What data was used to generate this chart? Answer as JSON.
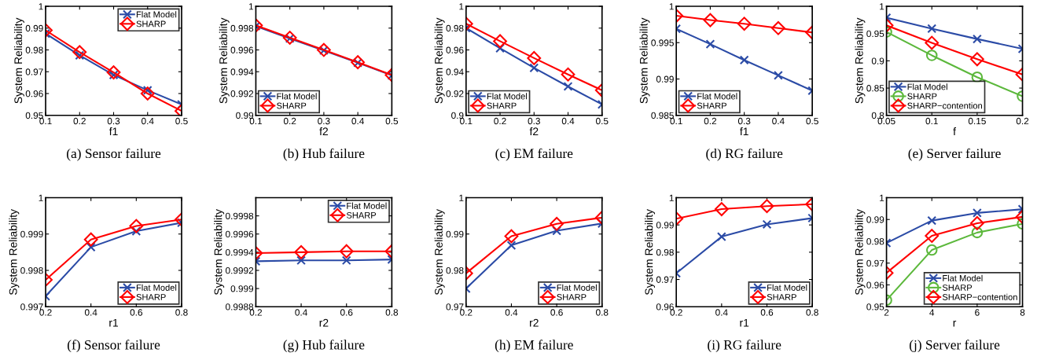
{
  "chart_data": [
    {
      "type": "line",
      "title": "(a) Sensor failure",
      "xlabel": "f1",
      "ylabel": "System Reliability",
      "x": [
        0.1,
        0.2,
        0.3,
        0.4,
        0.5
      ],
      "xlim": [
        0.1,
        0.5
      ],
      "xticks": [
        0.1,
        0.2,
        0.3,
        0.4,
        0.5
      ],
      "ylim": [
        0.95,
        1
      ],
      "yticks": [
        0.95,
        0.96,
        0.97,
        0.98,
        0.99,
        1
      ],
      "legend": "top right",
      "series": [
        {
          "name": "Flat Model",
          "color": "#2b4ba6",
          "marker": "cross",
          "values": [
            0.9875,
            0.9775,
            0.9685,
            0.9615,
            0.955
          ]
        },
        {
          "name": "SHARP",
          "color": "#ff0000",
          "marker": "diamond",
          "values": [
            0.989,
            0.979,
            0.9697,
            0.96,
            0.952
          ]
        }
      ]
    },
    {
      "type": "line",
      "title": "(b) Hub failure",
      "xlabel": "f2",
      "ylabel": "System Reliability",
      "x": [
        0.1,
        0.2,
        0.3,
        0.4,
        0.5
      ],
      "xlim": [
        0.1,
        0.5
      ],
      "xticks": [
        0.1,
        0.2,
        0.3,
        0.4,
        0.5
      ],
      "ylim": [
        0.99,
        1
      ],
      "yticks": [
        0.99,
        0.992,
        0.994,
        0.996,
        0.998,
        1
      ],
      "legend": "bottom left",
      "series": [
        {
          "name": "Flat Model",
          "color": "#2b4ba6",
          "marker": "cross",
          "values": [
            0.99818,
            0.99705,
            0.99595,
            0.99482,
            0.99367
          ]
        },
        {
          "name": "SHARP",
          "color": "#ff0000",
          "marker": "diamond",
          "values": [
            0.99825,
            0.99712,
            0.996,
            0.99487,
            0.9937
          ]
        }
      ]
    },
    {
      "type": "line",
      "title": "(c) EM failure",
      "xlabel": "f2",
      "ylabel": "System Reliability",
      "x": [
        0.1,
        0.2,
        0.3,
        0.4,
        0.5
      ],
      "xlim": [
        0.1,
        0.5
      ],
      "xticks": [
        0.1,
        0.2,
        0.3,
        0.4,
        0.5
      ],
      "ylim": [
        0.9,
        1
      ],
      "yticks": [
        0.9,
        0.92,
        0.94,
        0.96,
        0.98,
        1
      ],
      "legend": "bottom left",
      "series": [
        {
          "name": "Flat Model",
          "color": "#2b4ba6",
          "marker": "cross",
          "values": [
            0.98,
            0.9615,
            0.9435,
            0.9265,
            0.91
          ]
        },
        {
          "name": "SHARP",
          "color": "#ff0000",
          "marker": "diamond",
          "values": [
            0.984,
            0.968,
            0.9525,
            0.9375,
            0.923
          ]
        }
      ]
    },
    {
      "type": "line",
      "title": "(d) RG failure",
      "xlabel": "f1",
      "ylabel": "System Reliability",
      "x": [
        0.1,
        0.2,
        0.3,
        0.4,
        0.5
      ],
      "xlim": [
        0.1,
        0.5
      ],
      "xticks": [
        0.1,
        0.2,
        0.3,
        0.4,
        0.5
      ],
      "ylim": [
        0.985,
        1
      ],
      "yticks": [
        0.985,
        0.99,
        0.995,
        1
      ],
      "legend": "bottom left",
      "series": [
        {
          "name": "Flat Model",
          "color": "#2b4ba6",
          "marker": "cross",
          "values": [
            0.9969,
            0.9948,
            0.9926,
            0.9905,
            0.9884
          ]
        },
        {
          "name": "SHARP",
          "color": "#ff0000",
          "marker": "diamond",
          "values": [
            0.9987,
            0.9981,
            0.9976,
            0.997,
            0.9964
          ]
        }
      ]
    },
    {
      "type": "line",
      "title": "(e) Server failure",
      "xlabel": "f",
      "ylabel": "System Reliability",
      "x": [
        0.05,
        0.1,
        0.15,
        0.2
      ],
      "xlim": [
        0.05,
        0.2
      ],
      "xticks": [
        0.05,
        0.1,
        0.15,
        0.2
      ],
      "ylim": [
        0.8,
        1
      ],
      "yticks": [
        0.8,
        0.85,
        0.9,
        0.95,
        1
      ],
      "legend": "bottom left",
      "series": [
        {
          "name": "Flat Model",
          "color": "#2b4ba6",
          "marker": "cross",
          "values": [
            0.979,
            0.959,
            0.94,
            0.922
          ]
        },
        {
          "name": "SHARP",
          "color": "#5cb83c",
          "marker": "circle",
          "values": [
            0.953,
            0.91,
            0.87,
            0.835
          ]
        },
        {
          "name": "SHARP−contention",
          "color": "#ff0000",
          "marker": "diamond",
          "values": [
            0.965,
            0.933,
            0.903,
            0.875
          ]
        }
      ]
    },
    {
      "type": "line",
      "title": "(f) Sensor failure",
      "xlabel": "r1",
      "ylabel": "System Reliability",
      "x": [
        0.2,
        0.4,
        0.6,
        0.8
      ],
      "xlim": [
        0.2,
        0.8
      ],
      "xticks": [
        0.2,
        0.4,
        0.6,
        0.8
      ],
      "ylim": [
        0.997,
        1
      ],
      "yticks": [
        0.997,
        0.998,
        0.999,
        1
      ],
      "legend": "bottom right",
      "series": [
        {
          "name": "Flat Model",
          "color": "#2b4ba6",
          "marker": "cross",
          "values": [
            0.99729,
            0.99864,
            0.99908,
            0.99931
          ]
        },
        {
          "name": "SHARP",
          "color": "#ff0000",
          "marker": "diamond",
          "values": [
            0.99774,
            0.99885,
            0.99922,
            0.9994
          ]
        }
      ]
    },
    {
      "type": "line",
      "title": "(g) Hub failure",
      "xlabel": "r2",
      "ylabel": "System Reliability",
      "x": [
        0.2,
        0.4,
        0.6,
        0.8
      ],
      "xlim": [
        0.2,
        0.8
      ],
      "xticks": [
        0.2,
        0.4,
        0.6,
        0.8
      ],
      "ylim": [
        0.9988,
        1
      ],
      "yticks": [
        0.9988,
        0.999,
        0.9992,
        0.9994,
        0.9996,
        0.9998
      ],
      "legend": "top right",
      "series": [
        {
          "name": "Flat Model",
          "color": "#2b4ba6",
          "marker": "cross",
          "values": [
            0.9993,
            0.99931,
            0.99931,
            0.99932
          ]
        },
        {
          "name": "SHARP",
          "color": "#ff0000",
          "marker": "diamond",
          "values": [
            0.99939,
            0.9994,
            0.99941,
            0.99941
          ]
        }
      ]
    },
    {
      "type": "line",
      "title": "(h) EM failure",
      "xlabel": "r2",
      "ylabel": "System Reliability",
      "x": [
        0.2,
        0.4,
        0.6,
        0.8
      ],
      "xlim": [
        0.2,
        0.8
      ],
      "xticks": [
        0.2,
        0.4,
        0.6,
        0.8
      ],
      "ylim": [
        0.97,
        1
      ],
      "yticks": [
        0.97,
        0.98,
        0.99,
        1
      ],
      "legend": "bottom right",
      "series": [
        {
          "name": "Flat Model",
          "color": "#2b4ba6",
          "marker": "cross",
          "values": [
            0.975,
            0.9869,
            0.9909,
            0.9929
          ]
        },
        {
          "name": "SHARP",
          "color": "#ff0000",
          "marker": "diamond",
          "values": [
            0.9792,
            0.9894,
            0.9928,
            0.9945
          ]
        }
      ]
    },
    {
      "type": "line",
      "title": "(i) RG failure",
      "xlabel": "r1",
      "ylabel": "System Reliability",
      "x": [
        0.2,
        0.4,
        0.6,
        0.8
      ],
      "xlim": [
        0.2,
        0.8
      ],
      "xticks": [
        0.2,
        0.4,
        0.6,
        0.8
      ],
      "ylim": [
        0.96,
        1
      ],
      "yticks": [
        0.96,
        0.97,
        0.98,
        0.99,
        1
      ],
      "legend": "bottom right",
      "series": [
        {
          "name": "Flat Model",
          "color": "#2b4ba6",
          "marker": "cross",
          "values": [
            0.9723,
            0.9857,
            0.9902,
            0.9925
          ]
        },
        {
          "name": "SHARP",
          "color": "#ff0000",
          "marker": "diamond",
          "values": [
            0.9923,
            0.9958,
            0.9969,
            0.9976
          ]
        }
      ]
    },
    {
      "type": "line",
      "title": "(j) Server failure",
      "xlabel": "r",
      "ylabel": "System Reliability",
      "x": [
        2,
        4,
        6,
        8
      ],
      "xlim": [
        2,
        8
      ],
      "xticks": [
        2,
        4,
        6,
        8
      ],
      "ylim": [
        0.95,
        1
      ],
      "yticks": [
        0.95,
        0.96,
        0.97,
        0.98,
        0.99,
        1
      ],
      "legend": "bottom right",
      "series": [
        {
          "name": "Flat Model",
          "color": "#2b4ba6",
          "marker": "cross",
          "values": [
            0.9792,
            0.9895,
            0.993,
            0.9947
          ]
        },
        {
          "name": "SHARP",
          "color": "#5cb83c",
          "marker": "circle",
          "values": [
            0.953,
            0.976,
            0.984,
            0.988
          ]
        },
        {
          "name": "SHARP−contention",
          "color": "#ff0000",
          "marker": "diamond",
          "values": [
            0.9655,
            0.9825,
            0.9883,
            0.9912
          ]
        }
      ]
    }
  ]
}
